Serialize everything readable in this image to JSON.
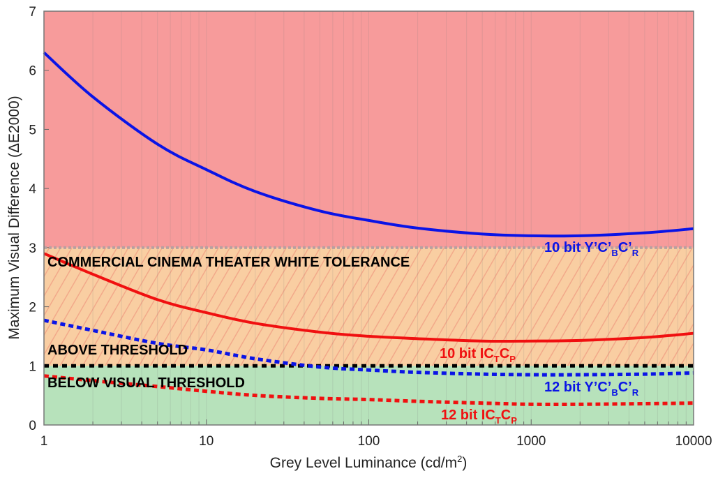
{
  "chart_data": {
    "type": "line",
    "xscale": "log",
    "xlabel": "Grey Level Luminance (cd/m",
    "xlabel_sup": "2",
    "xlabel_end": ")",
    "ylabel": "Maximum Visual Difference (ΔE2000)",
    "xlim": [
      1,
      10000
    ],
    "ylim": [
      0,
      7
    ],
    "xticks": [
      "1",
      "10",
      "100",
      "1000",
      "10000"
    ],
    "xtick_values": [
      1,
      10,
      100,
      1000,
      10000
    ],
    "yticks": [
      "0",
      "1",
      "2",
      "3",
      "4",
      "5",
      "6",
      "7"
    ],
    "regions": [
      {
        "name": "red",
        "from": 3,
        "to": 7,
        "color": "#f79b9b"
      },
      {
        "name": "orange",
        "from": 1,
        "to": 3,
        "color": "#f9cea2",
        "label": "COMMERCIAL CINEMA THEATER WHITE TOLERANCE"
      },
      {
        "name": "green",
        "from": 0,
        "to": 1,
        "color": "#b7e2bb",
        "label": "BELOW VISUAL THRESHOLD"
      }
    ],
    "above_label": "ABOVE THRESHOLD",
    "threshold_lines": [
      {
        "y": 3,
        "color": "#b8a0a0"
      },
      {
        "y": 1,
        "color": "#000000"
      }
    ],
    "x": [
      1,
      2,
      5,
      10,
      20,
      50,
      100,
      200,
      500,
      1000,
      2000,
      5000,
      10000
    ],
    "series": [
      {
        "name": "10 bit Y'C'BC'R",
        "color": "#0a14e6",
        "style": "solid",
        "label_parts": [
          "10 bit Y’C’",
          "B",
          "C’",
          "R"
        ],
        "values": [
          6.3,
          5.55,
          4.75,
          4.32,
          3.95,
          3.62,
          3.46,
          3.33,
          3.23,
          3.2,
          3.2,
          3.25,
          3.32
        ]
      },
      {
        "name": "10 bit ICTCP",
        "color": "#f01010",
        "style": "solid",
        "label_parts": [
          "10 bit IC",
          "T",
          "C",
          "P"
        ],
        "values": [
          2.9,
          2.55,
          2.12,
          1.9,
          1.72,
          1.57,
          1.5,
          1.46,
          1.42,
          1.42,
          1.43,
          1.48,
          1.55
        ]
      },
      {
        "name": "12 bit Y'C'BC'R",
        "color": "#0a14e6",
        "style": "dotted",
        "label_parts": [
          "12 bit Y’C’",
          "B",
          "C’",
          "R"
        ],
        "values": [
          1.77,
          1.6,
          1.38,
          1.27,
          1.12,
          0.98,
          0.93,
          0.89,
          0.86,
          0.85,
          0.85,
          0.86,
          0.88
        ]
      },
      {
        "name": "12 bit ICTCP",
        "color": "#f01010",
        "style": "dotted",
        "label_parts": [
          "12 bit IC",
          "T",
          "C",
          "P"
        ],
        "values": [
          0.83,
          0.75,
          0.65,
          0.57,
          0.5,
          0.45,
          0.43,
          0.4,
          0.37,
          0.35,
          0.35,
          0.36,
          0.37
        ]
      }
    ]
  }
}
